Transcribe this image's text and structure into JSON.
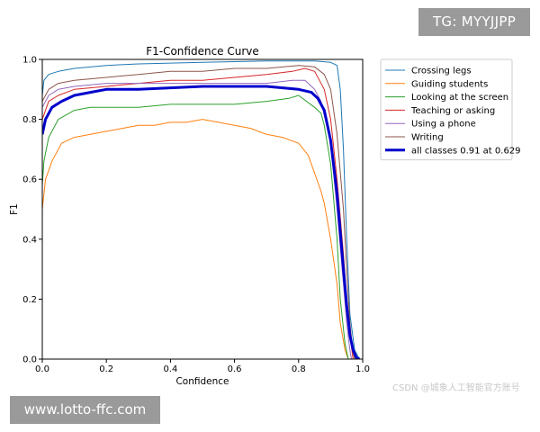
{
  "watermarks": {
    "top_right": "TG: MYYJJPP",
    "bottom_left": "www.lotto-ffc.com",
    "bottom_right": "CSDN @城象人工智能官方账号"
  },
  "chart_data": {
    "type": "line",
    "title": "F1-Confidence Curve",
    "xlabel": "Confidence",
    "ylabel": "F1",
    "xlim": [
      0,
      1
    ],
    "ylim": [
      0,
      1
    ],
    "xticks": [
      "0.0",
      "0.2",
      "0.4",
      "0.6",
      "0.8",
      "1.0"
    ],
    "yticks": [
      "0.0",
      "0.2",
      "0.4",
      "0.6",
      "0.8",
      "1.0"
    ],
    "grid": false,
    "legend_position": "outside-right-top",
    "series": [
      {
        "name": "Crossing legs",
        "color": "#1f77b4",
        "width": 1,
        "points": [
          [
            0,
            0.88
          ],
          [
            0.005,
            0.93
          ],
          [
            0.02,
            0.95
          ],
          [
            0.05,
            0.96
          ],
          [
            0.1,
            0.97
          ],
          [
            0.2,
            0.98
          ],
          [
            0.3,
            0.985
          ],
          [
            0.5,
            0.99
          ],
          [
            0.7,
            0.995
          ],
          [
            0.85,
            0.995
          ],
          [
            0.9,
            0.99
          ],
          [
            0.92,
            0.98
          ],
          [
            0.93,
            0.9
          ],
          [
            0.94,
            0.7
          ],
          [
            0.95,
            0.4
          ],
          [
            0.96,
            0.15
          ],
          [
            0.975,
            0.03
          ],
          [
            0.99,
            0
          ]
        ]
      },
      {
        "name": "Guiding students",
        "color": "#ff7f0e",
        "width": 1,
        "points": [
          [
            0,
            0.5
          ],
          [
            0.01,
            0.6
          ],
          [
            0.03,
            0.66
          ],
          [
            0.06,
            0.72
          ],
          [
            0.1,
            0.74
          ],
          [
            0.15,
            0.75
          ],
          [
            0.2,
            0.76
          ],
          [
            0.25,
            0.77
          ],
          [
            0.3,
            0.78
          ],
          [
            0.35,
            0.78
          ],
          [
            0.4,
            0.79
          ],
          [
            0.45,
            0.79
          ],
          [
            0.5,
            0.8
          ],
          [
            0.55,
            0.79
          ],
          [
            0.6,
            0.78
          ],
          [
            0.65,
            0.77
          ],
          [
            0.7,
            0.75
          ],
          [
            0.75,
            0.74
          ],
          [
            0.8,
            0.72
          ],
          [
            0.83,
            0.68
          ],
          [
            0.85,
            0.62
          ],
          [
            0.87,
            0.56
          ],
          [
            0.88,
            0.52
          ],
          [
            0.9,
            0.4
          ],
          [
            0.92,
            0.25
          ],
          [
            0.93,
            0.12
          ],
          [
            0.945,
            0.03
          ],
          [
            0.955,
            0
          ]
        ]
      },
      {
        "name": "Looking at the screen",
        "color": "#2ca02c",
        "width": 1,
        "points": [
          [
            0,
            0.58
          ],
          [
            0.005,
            0.66
          ],
          [
            0.02,
            0.74
          ],
          [
            0.05,
            0.8
          ],
          [
            0.1,
            0.83
          ],
          [
            0.15,
            0.84
          ],
          [
            0.2,
            0.84
          ],
          [
            0.3,
            0.84
          ],
          [
            0.4,
            0.85
          ],
          [
            0.5,
            0.85
          ],
          [
            0.6,
            0.85
          ],
          [
            0.7,
            0.86
          ],
          [
            0.77,
            0.87
          ],
          [
            0.8,
            0.88
          ],
          [
            0.85,
            0.84
          ],
          [
            0.87,
            0.82
          ],
          [
            0.88,
            0.78
          ],
          [
            0.9,
            0.65
          ],
          [
            0.92,
            0.4
          ],
          [
            0.93,
            0.2
          ],
          [
            0.945,
            0.05
          ],
          [
            0.955,
            0
          ]
        ]
      },
      {
        "name": "Teaching or asking",
        "color": "#d62728",
        "width": 1,
        "points": [
          [
            0,
            0.8
          ],
          [
            0.02,
            0.86
          ],
          [
            0.05,
            0.88
          ],
          [
            0.1,
            0.9
          ],
          [
            0.2,
            0.91
          ],
          [
            0.3,
            0.92
          ],
          [
            0.4,
            0.93
          ],
          [
            0.5,
            0.93
          ],
          [
            0.6,
            0.94
          ],
          [
            0.7,
            0.95
          ],
          [
            0.78,
            0.96
          ],
          [
            0.82,
            0.97
          ],
          [
            0.85,
            0.96
          ],
          [
            0.88,
            0.9
          ],
          [
            0.9,
            0.8
          ],
          [
            0.92,
            0.6
          ],
          [
            0.94,
            0.35
          ],
          [
            0.95,
            0.2
          ],
          [
            0.96,
            0.08
          ],
          [
            0.97,
            0
          ]
        ]
      },
      {
        "name": "Using a phone",
        "color": "#9467bd",
        "width": 1,
        "points": [
          [
            0,
            0.84
          ],
          [
            0.02,
            0.88
          ],
          [
            0.05,
            0.9
          ],
          [
            0.1,
            0.91
          ],
          [
            0.2,
            0.92
          ],
          [
            0.3,
            0.92
          ],
          [
            0.4,
            0.92
          ],
          [
            0.5,
            0.92
          ],
          [
            0.6,
            0.92
          ],
          [
            0.7,
            0.92
          ],
          [
            0.78,
            0.93
          ],
          [
            0.82,
            0.93
          ],
          [
            0.85,
            0.9
          ],
          [
            0.87,
            0.86
          ],
          [
            0.9,
            0.72
          ],
          [
            0.92,
            0.5
          ],
          [
            0.94,
            0.25
          ],
          [
            0.95,
            0.12
          ],
          [
            0.96,
            0.03
          ],
          [
            0.965,
            0
          ]
        ]
      },
      {
        "name": "Writing",
        "color": "#8c564b",
        "width": 1,
        "points": [
          [
            0,
            0.86
          ],
          [
            0.02,
            0.9
          ],
          [
            0.05,
            0.92
          ],
          [
            0.1,
            0.93
          ],
          [
            0.2,
            0.94
          ],
          [
            0.3,
            0.95
          ],
          [
            0.4,
            0.96
          ],
          [
            0.5,
            0.96
          ],
          [
            0.6,
            0.97
          ],
          [
            0.7,
            0.97
          ],
          [
            0.8,
            0.98
          ],
          [
            0.85,
            0.975
          ],
          [
            0.88,
            0.95
          ],
          [
            0.9,
            0.9
          ],
          [
            0.92,
            0.75
          ],
          [
            0.94,
            0.5
          ],
          [
            0.95,
            0.3
          ],
          [
            0.96,
            0.12
          ],
          [
            0.97,
            0.02
          ],
          [
            0.975,
            0
          ]
        ]
      },
      {
        "name": "all classes 0.91 at 0.629",
        "color": "#0000cc",
        "width": 3,
        "points": [
          [
            0,
            0.75
          ],
          [
            0.01,
            0.8
          ],
          [
            0.03,
            0.84
          ],
          [
            0.06,
            0.86
          ],
          [
            0.1,
            0.88
          ],
          [
            0.15,
            0.89
          ],
          [
            0.2,
            0.9
          ],
          [
            0.3,
            0.9
          ],
          [
            0.4,
            0.905
          ],
          [
            0.5,
            0.91
          ],
          [
            0.629,
            0.91
          ],
          [
            0.7,
            0.91
          ],
          [
            0.8,
            0.9
          ],
          [
            0.84,
            0.89
          ],
          [
            0.86,
            0.87
          ],
          [
            0.88,
            0.83
          ],
          [
            0.9,
            0.73
          ],
          [
            0.92,
            0.55
          ],
          [
            0.94,
            0.3
          ],
          [
            0.95,
            0.18
          ],
          [
            0.96,
            0.08
          ],
          [
            0.97,
            0.03
          ],
          [
            0.98,
            0.005
          ],
          [
            0.99,
            0
          ]
        ]
      }
    ]
  }
}
